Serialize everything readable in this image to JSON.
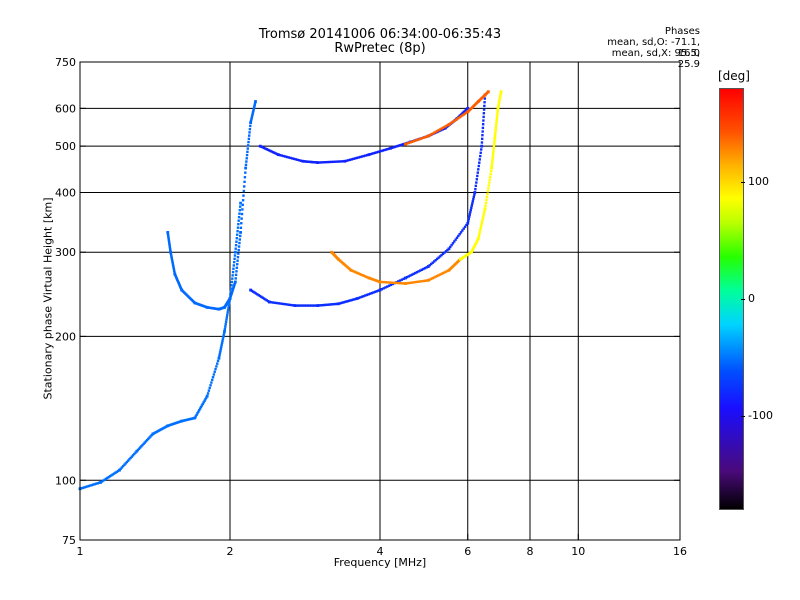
{
  "chart_data": {
    "type": "scatter",
    "title": "Tromsø 20141006 06:34:00-06:35:43",
    "subtitle": "RwPretec (8p)",
    "xlabel": "Frequency [MHz]",
    "ylabel": "Stationary phase Virtual Height [km]",
    "x_scale": "log",
    "y_scale": "log",
    "xlim": [
      1,
      16
    ],
    "ylim": [
      75,
      750
    ],
    "x_ticks": [
      1,
      2,
      4,
      6,
      8,
      10,
      16
    ],
    "y_ticks": [
      75,
      100,
      200,
      300,
      400,
      500,
      600,
      750
    ],
    "x_grid": [
      2,
      4,
      6,
      8,
      10
    ],
    "y_grid": [
      100,
      200,
      300,
      400,
      500,
      600
    ],
    "stats": {
      "heading": "Phases",
      "line1": "mean, sd,O: -71.1, 16.0",
      "line2": "mean, sd,X:  95.5, 25.9"
    },
    "colorbar": {
      "label": "[deg]",
      "range": [
        -180,
        180
      ],
      "ticks": [
        100,
        0,
        -100
      ]
    },
    "series": [
      {
        "trace": "low O-mode curve",
        "phase": -70,
        "points": [
          [
            1.0,
            96
          ],
          [
            1.1,
            99
          ],
          [
            1.2,
            105
          ],
          [
            1.3,
            115
          ],
          [
            1.4,
            125
          ],
          [
            1.5,
            130
          ],
          [
            1.6,
            133
          ],
          [
            1.7,
            135
          ],
          [
            1.8,
            150
          ],
          [
            1.9,
            180
          ],
          [
            1.95,
            205
          ],
          [
            2.0,
            240
          ],
          [
            2.05,
            300
          ],
          [
            2.1,
            380
          ]
        ]
      },
      {
        "trace": "low O-mode cusp",
        "phase": -72,
        "points": [
          [
            1.5,
            330
          ],
          [
            1.52,
            300
          ],
          [
            1.55,
            270
          ],
          [
            1.6,
            250
          ],
          [
            1.7,
            235
          ],
          [
            1.8,
            230
          ],
          [
            1.9,
            228
          ],
          [
            1.95,
            230
          ],
          [
            2.0,
            240
          ],
          [
            2.05,
            260
          ],
          [
            2.1,
            330
          ],
          [
            2.15,
            450
          ],
          [
            2.2,
            560
          ],
          [
            2.25,
            620
          ]
        ]
      },
      {
        "trace": "F-layer O-mode lower",
        "phase": -95,
        "points": [
          [
            2.2,
            250
          ],
          [
            2.4,
            236
          ],
          [
            2.7,
            232
          ],
          [
            3.0,
            232
          ],
          [
            3.3,
            234
          ],
          [
            3.6,
            240
          ],
          [
            4.0,
            250
          ],
          [
            4.5,
            265
          ],
          [
            5.0,
            280
          ],
          [
            5.5,
            305
          ],
          [
            6.0,
            345
          ],
          [
            6.2,
            400
          ],
          [
            6.4,
            500
          ],
          [
            6.5,
            640
          ]
        ]
      },
      {
        "trace": "F-layer O-mode upper",
        "phase": -100,
        "points": [
          [
            2.3,
            500
          ],
          [
            2.5,
            480
          ],
          [
            2.8,
            465
          ],
          [
            3.0,
            462
          ],
          [
            3.4,
            465
          ],
          [
            3.8,
            480
          ],
          [
            4.2,
            495
          ],
          [
            4.6,
            510
          ],
          [
            5.0,
            525
          ],
          [
            5.4,
            545
          ],
          [
            5.7,
            570
          ],
          [
            6.0,
            600
          ]
        ]
      },
      {
        "trace": "X-mode lower",
        "phase": 130,
        "points": [
          [
            3.2,
            300
          ],
          [
            3.3,
            290
          ],
          [
            3.5,
            275
          ],
          [
            3.8,
            265
          ],
          [
            4.0,
            260
          ],
          [
            4.5,
            258
          ],
          [
            5.0,
            262
          ],
          [
            5.5,
            275
          ],
          [
            5.8,
            290
          ]
        ]
      },
      {
        "trace": "X-mode cusp",
        "phase": 85,
        "points": [
          [
            5.8,
            290
          ],
          [
            6.1,
            300
          ],
          [
            6.3,
            320
          ],
          [
            6.5,
            370
          ],
          [
            6.7,
            450
          ],
          [
            6.8,
            520
          ],
          [
            6.9,
            600
          ],
          [
            7.0,
            650
          ]
        ]
      },
      {
        "trace": "X-mode upper",
        "phase": 145,
        "points": [
          [
            4.5,
            505
          ],
          [
            5.0,
            525
          ],
          [
            5.5,
            555
          ],
          [
            6.0,
            590
          ],
          [
            6.3,
            620
          ],
          [
            6.6,
            650
          ]
        ]
      }
    ]
  }
}
